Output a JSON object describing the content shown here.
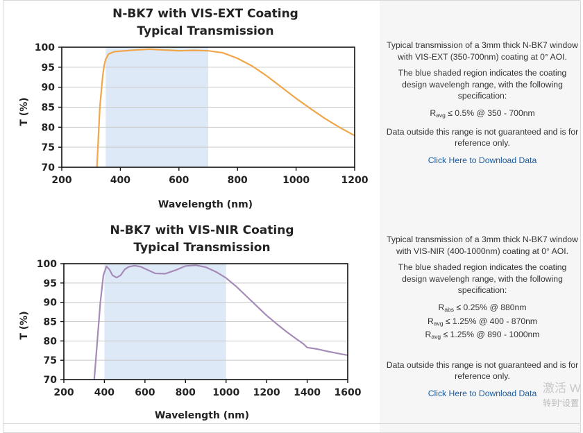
{
  "chart_data": [
    {
      "type": "line",
      "title": "N-BK7 with VIS-EXT Coating",
      "subtitle": "Typical Transmission",
      "xlabel": "Wavelength (nm)",
      "ylabel": "T (%)",
      "xlim": [
        200,
        1200
      ],
      "ylim": [
        70,
        100
      ],
      "xticks": [
        200,
        400,
        600,
        800,
        1000,
        1200
      ],
      "yticks": [
        70,
        75,
        80,
        85,
        90,
        95,
        100
      ],
      "grid": true,
      "shaded_region": [
        350,
        700
      ],
      "color": "#f0a64a",
      "shade_color": "#dde9f6",
      "series": [
        {
          "x": [
            320,
            330,
            340,
            345,
            350,
            360,
            380,
            400,
            450,
            500,
            550,
            600,
            650,
            700,
            750,
            800,
            850,
            900,
            950,
            1000,
            1050,
            1100,
            1150,
            1200
          ],
          "y": [
            70,
            85,
            93,
            95.5,
            97,
            98.3,
            98.9,
            99.0,
            99.3,
            99.5,
            99.3,
            99.1,
            99.2,
            99.1,
            98.6,
            97.2,
            95.3,
            92.8,
            90.0,
            87.2,
            84.6,
            82.1,
            79.9,
            77.9
          ]
        }
      ]
    },
    {
      "type": "line",
      "title": "N-BK7 with VIS-NIR Coating",
      "subtitle": "Typical Transmission",
      "xlabel": "Wavelength (nm)",
      "ylabel": "T (%)",
      "xlim": [
        200,
        1600
      ],
      "ylim": [
        70,
        100
      ],
      "xticks": [
        200,
        400,
        600,
        800,
        1000,
        1200,
        1400,
        1600
      ],
      "yticks": [
        70,
        75,
        80,
        85,
        90,
        95,
        100
      ],
      "grid": true,
      "shaded_region": [
        400,
        1000
      ],
      "color": "#a58bb8",
      "shade_color": "#dde9f6",
      "series": [
        {
          "x": [
            350,
            365,
            380,
            395,
            410,
            425,
            440,
            460,
            480,
            500,
            520,
            550,
            580,
            600,
            650,
            700,
            750,
            800,
            850,
            900,
            950,
            1000,
            1050,
            1100,
            1150,
            1200,
            1250,
            1300,
            1350,
            1380,
            1400,
            1450,
            1500,
            1550,
            1600
          ],
          "y": [
            70,
            80,
            90,
            97,
            99.3,
            98.5,
            97.0,
            96.4,
            97.0,
            98.5,
            99.2,
            99.5,
            99.2,
            98.7,
            97.5,
            97.4,
            98.3,
            99.4,
            99.6,
            99.1,
            97.9,
            96.3,
            94.1,
            91.6,
            89.1,
            86.6,
            84.4,
            82.3,
            80.4,
            79.3,
            78.3,
            77.9,
            77.3,
            76.8,
            76.3
          ]
        }
      ]
    }
  ],
  "descriptions": [
    {
      "intro": "Typical transmission of a 3mm thick N-BK7 window with VIS-EXT (350-700nm) coating at 0° AOI.",
      "region": "The blue shaded region indicates the coating design wavelengh range, with the following specification:",
      "specs": [
        {
          "sym": "R",
          "sub": "avg",
          "text": " ≤ 0.5% @ 350 - 700nm"
        }
      ],
      "disclaimer": "Data outside this range is not guaranteed and is for reference only.",
      "link": "Click Here to Download Data"
    },
    {
      "intro": "Typical transmission of a 3mm thick N-BK7 window with VIS-NIR (400-1000nm) coating at 0° AOI.",
      "region": "The blue shaded region indicates the coating design wavelengh range, with the following specification:",
      "specs": [
        {
          "sym": "R",
          "sub": "abs",
          "text": " ≤ 0.25% @ 880nm"
        },
        {
          "sym": "R",
          "sub": "avg",
          "text": " ≤ 1.25% @ 400 - 870nm"
        },
        {
          "sym": "R",
          "sub": "avg",
          "text": " ≤ 1.25% @ 890 - 1000nm"
        }
      ],
      "disclaimer": "Data outside this range is not guaranteed and is for reference only.",
      "link": "Click Here to Download Data"
    }
  ],
  "watermark": {
    "line1": "激活 W",
    "line2": "转到“设置"
  }
}
